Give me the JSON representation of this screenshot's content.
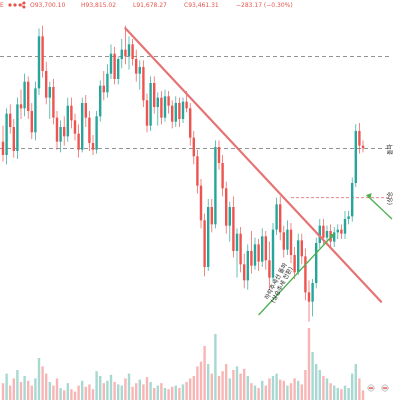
{
  "header": {
    "symbol_mark": "E",
    "open": "O93,700.10",
    "high": "H93,815.02",
    "low": "L91,678.27",
    "close": "C93,461.31",
    "change": "−283.17 (−0.30%)"
  },
  "colors": {
    "up": "#26a69a",
    "down": "#ef5350",
    "up_volume": "#a7d8d2",
    "down_volume": "#f7b6b5",
    "trendline": "#e57373",
    "arrow": "#4caf50",
    "dashed": "#555555",
    "header_text": "#e5534b"
  },
  "annotations": {
    "left_arrow_line1": "하락추세선 돌파",
    "left_arrow_line2": "(상승추세 전환)",
    "right_label_line1": "돌파",
    "right_label_line2": "(상승"
  },
  "chart_data": {
    "type": "candlestick",
    "title": "",
    "xlabel": "",
    "ylabel": "",
    "price_range": [
      84,
      108
    ],
    "volume_range": [
      0,
      100
    ],
    "reference_lines": [
      104.9,
      98.0
    ],
    "resistance_line": 94.3,
    "trendline": {
      "start": {
        "bar": 34,
        "price": 107.0
      },
      "end": {
        "bar": 105,
        "price": 86.5
      }
    },
    "candles": [
      [
        98.5,
        99.7,
        97.0,
        97.5,
        14
      ],
      [
        97.5,
        101.0,
        96.8,
        100.6,
        22
      ],
      [
        100.6,
        101.3,
        99.1,
        99.6,
        12
      ],
      [
        99.6,
        100.2,
        97.3,
        97.8,
        18
      ],
      [
        97.8,
        101.8,
        97.2,
        101.3,
        25
      ],
      [
        101.3,
        102.4,
        100.2,
        101.0,
        15
      ],
      [
        101.0,
        103.6,
        100.4,
        103.0,
        20
      ],
      [
        103.0,
        103.4,
        100.2,
        100.8,
        16
      ],
      [
        100.8,
        101.4,
        98.7,
        99.2,
        12
      ],
      [
        99.2,
        103.0,
        98.6,
        102.5,
        18
      ],
      [
        102.5,
        107.0,
        102.0,
        106.4,
        35
      ],
      [
        106.4,
        107.2,
        103.3,
        103.8,
        28
      ],
      [
        103.8,
        104.5,
        101.3,
        101.8,
        22
      ],
      [
        101.8,
        103.0,
        100.2,
        102.6,
        15
      ],
      [
        102.6,
        103.2,
        99.8,
        100.3,
        12
      ],
      [
        100.3,
        100.8,
        97.9,
        98.5,
        18
      ],
      [
        98.5,
        100.1,
        97.7,
        99.6,
        10
      ],
      [
        99.6,
        100.4,
        98.2,
        98.9,
        8
      ],
      [
        98.9,
        101.8,
        98.5,
        101.2,
        14
      ],
      [
        101.2,
        101.8,
        99.5,
        100.1,
        9
      ],
      [
        100.1,
        100.6,
        98.6,
        99.1,
        7
      ],
      [
        99.1,
        99.8,
        97.3,
        97.9,
        12
      ],
      [
        97.9,
        101.8,
        97.7,
        101.4,
        16
      ],
      [
        101.4,
        102.0,
        99.6,
        100.3,
        11
      ],
      [
        100.3,
        100.8,
        97.8,
        98.4,
        13
      ],
      [
        98.4,
        99.0,
        97.5,
        97.9,
        9
      ],
      [
        97.9,
        100.8,
        97.6,
        100.4,
        24
      ],
      [
        100.4,
        103.1,
        100.0,
        102.7,
        20
      ],
      [
        102.7,
        103.8,
        101.6,
        102.2,
        14
      ],
      [
        102.2,
        104.3,
        101.8,
        103.6,
        16
      ],
      [
        103.6,
        105.8,
        103.2,
        105.1,
        21
      ],
      [
        105.1,
        105.6,
        102.8,
        103.2,
        15
      ],
      [
        103.2,
        104.9,
        102.8,
        104.7,
        13
      ],
      [
        104.7,
        106.2,
        104.0,
        105.4,
        12
      ],
      [
        105.4,
        107.2,
        104.3,
        104.9,
        18
      ],
      [
        104.9,
        106.4,
        103.9,
        105.8,
        22
      ],
      [
        105.8,
        106.2,
        104.2,
        104.7,
        11
      ],
      [
        104.7,
        105.4,
        103.0,
        103.6,
        14
      ],
      [
        103.6,
        104.6,
        102.4,
        104.1,
        17
      ],
      [
        104.1,
        104.6,
        101.1,
        101.6,
        13
      ],
      [
        101.6,
        102.1,
        99.2,
        99.7,
        19
      ],
      [
        99.7,
        103.4,
        99.3,
        102.9,
        15
      ],
      [
        102.9,
        103.4,
        100.6,
        101.1,
        10
      ],
      [
        101.1,
        102.2,
        99.7,
        101.8,
        12
      ],
      [
        101.8,
        102.3,
        99.8,
        100.3,
        14
      ],
      [
        100.3,
        102.4,
        100.0,
        101.9,
        10
      ],
      [
        101.9,
        102.3,
        100.6,
        101.2,
        9
      ],
      [
        101.2,
        101.6,
        99.5,
        100.0,
        11
      ],
      [
        100.0,
        101.9,
        99.6,
        101.4,
        12
      ],
      [
        101.4,
        101.8,
        99.6,
        100.2,
        10
      ],
      [
        100.2,
        101.8,
        99.9,
        101.5,
        13
      ],
      [
        101.5,
        102.3,
        100.7,
        101.0,
        15
      ],
      [
        101.0,
        101.4,
        98.2,
        98.8,
        18
      ],
      [
        98.8,
        99.3,
        96.8,
        97.4,
        20
      ],
      [
        97.4,
        97.9,
        94.6,
        95.2,
        28
      ],
      [
        95.2,
        95.7,
        92.0,
        92.6,
        32
      ],
      [
        92.6,
        93.1,
        88.4,
        89.1,
        45
      ],
      [
        89.1,
        94.2,
        88.8,
        93.6,
        30
      ],
      [
        93.6,
        94.2,
        91.7,
        92.3,
        22
      ],
      [
        92.3,
        98.6,
        92.0,
        98.1,
        55
      ],
      [
        98.1,
        98.6,
        96.4,
        96.9,
        20
      ],
      [
        96.9,
        97.5,
        94.4,
        95.0,
        24
      ],
      [
        95.0,
        95.5,
        91.6,
        92.2,
        30
      ],
      [
        92.2,
        94.0,
        91.0,
        93.6,
        18
      ],
      [
        93.6,
        94.4,
        89.8,
        90.3,
        25
      ],
      [
        90.3,
        92.0,
        88.3,
        91.6,
        28
      ],
      [
        91.6,
        92.1,
        88.7,
        89.3,
        22
      ],
      [
        89.3,
        90.1,
        87.5,
        88.1,
        26
      ],
      [
        88.1,
        90.8,
        87.4,
        90.3,
        20
      ],
      [
        90.3,
        91.8,
        88.6,
        89.2,
        14
      ],
      [
        89.2,
        91.3,
        88.9,
        90.8,
        12
      ],
      [
        90.8,
        91.2,
        88.8,
        89.5,
        10
      ],
      [
        89.5,
        92.0,
        89.1,
        91.4,
        16
      ],
      [
        91.4,
        91.8,
        88.9,
        89.6,
        12
      ],
      [
        89.6,
        91.0,
        87.4,
        88.3,
        18
      ],
      [
        88.3,
        92.4,
        88.0,
        91.9,
        20
      ],
      [
        91.9,
        94.3,
        91.5,
        93.8,
        22
      ],
      [
        93.8,
        94.4,
        91.1,
        91.7,
        17
      ],
      [
        91.7,
        92.2,
        89.8,
        90.4,
        16
      ],
      [
        90.4,
        92.6,
        90.0,
        91.9,
        12
      ],
      [
        91.9,
        92.4,
        89.4,
        90.0,
        14
      ],
      [
        90.0,
        90.6,
        88.2,
        88.7,
        18
      ],
      [
        88.7,
        91.6,
        88.5,
        91.1,
        16
      ],
      [
        91.1,
        91.6,
        89.3,
        89.9,
        13
      ],
      [
        89.9,
        90.5,
        86.6,
        87.2,
        25
      ],
      [
        87.2,
        88.1,
        85.0,
        86.5,
        60
      ],
      [
        86.5,
        88.2,
        85.4,
        87.9,
        40
      ],
      [
        87.9,
        91.3,
        87.5,
        90.9,
        30
      ],
      [
        90.9,
        92.7,
        90.5,
        92.2,
        25
      ],
      [
        92.2,
        92.7,
        90.7,
        91.3,
        20
      ],
      [
        91.3,
        92.2,
        90.8,
        91.8,
        18
      ],
      [
        91.8,
        92.3,
        90.6,
        91.0,
        14
      ],
      [
        91.0,
        92.1,
        90.6,
        91.7,
        12
      ],
      [
        91.7,
        92.3,
        91.2,
        91.9,
        10
      ],
      [
        91.9,
        92.3,
        91.2,
        91.6,
        9
      ],
      [
        91.6,
        93.3,
        91.2,
        92.7,
        12
      ],
      [
        92.7,
        93.3,
        92.3,
        92.9,
        10
      ],
      [
        92.9,
        95.8,
        92.5,
        95.4,
        22
      ],
      [
        95.4,
        99.8,
        95.1,
        99.3,
        30
      ],
      [
        99.3,
        99.9,
        97.6,
        98.2,
        18
      ],
      [
        98.2,
        98.6,
        97.7,
        98.0,
        8
      ]
    ]
  }
}
